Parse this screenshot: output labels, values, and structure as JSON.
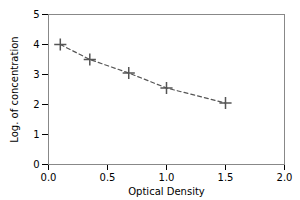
{
  "chart_data": {
    "type": "line",
    "xlabel": "Optical Density",
    "ylabel": "Log. of concentration",
    "x": [
      0.1,
      0.35,
      0.68,
      1.0,
      1.5
    ],
    "values": [
      4.0,
      3.5,
      3.05,
      2.55,
      2.05
    ],
    "color": "#555555",
    "line_style": "dashed",
    "marker": "plus",
    "xlim": [
      0,
      2
    ],
    "ylim": [
      0,
      5
    ],
    "xticks": [
      {
        "value": 0,
        "label": "0.0"
      },
      {
        "value": 0.5,
        "label": "0.5"
      },
      {
        "value": 1,
        "label": "1.0"
      },
      {
        "value": 1.5,
        "label": "1.5"
      },
      {
        "value": 2,
        "label": "2.0"
      }
    ],
    "yticks": [
      0,
      1,
      2,
      3,
      4,
      5
    ]
  }
}
